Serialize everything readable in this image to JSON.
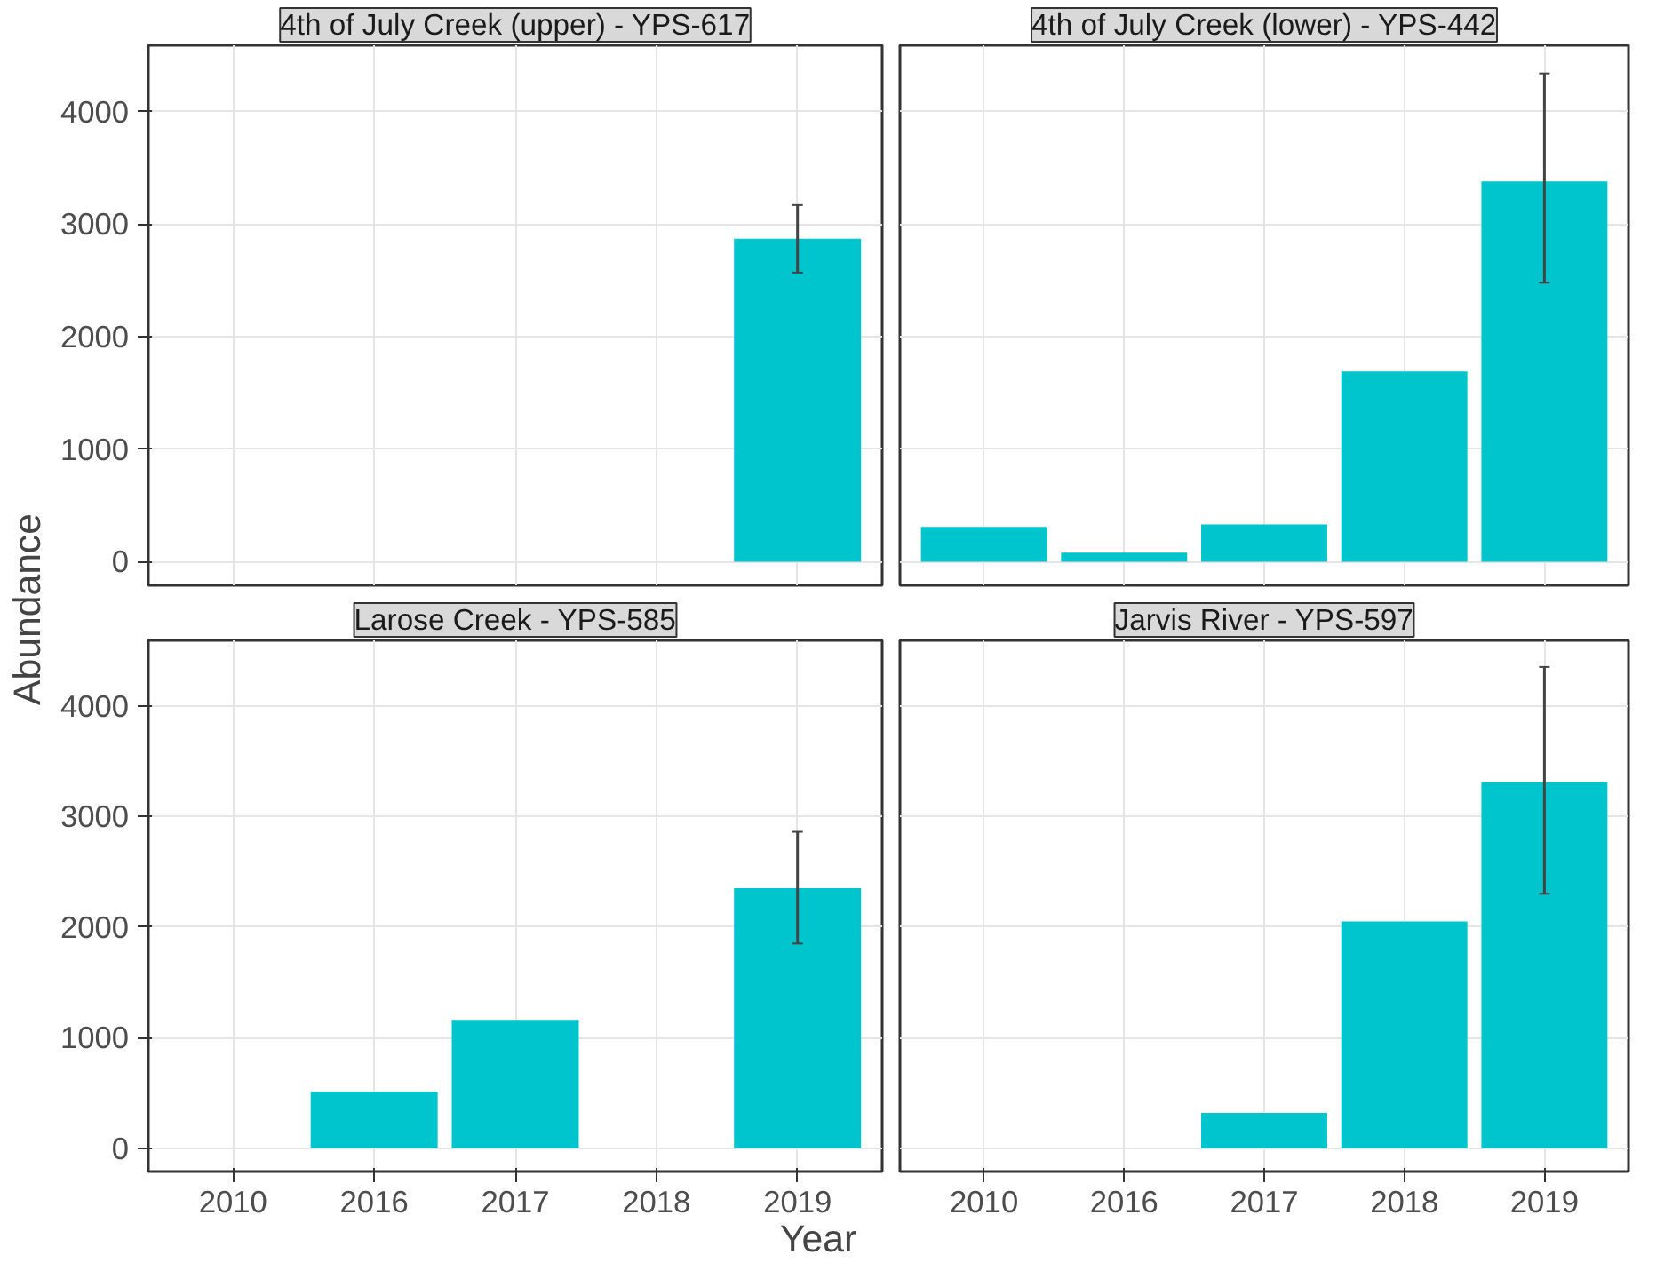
{
  "chart_data": [
    {
      "type": "bar",
      "title": "4th of July Creek (upper) - YPS-617",
      "ylabel": "Abundance",
      "categories": [
        "2010",
        "2016",
        "2017",
        "2018",
        "2019"
      ],
      "values": [
        null,
        null,
        null,
        null,
        2870
      ],
      "errors": [
        null,
        null,
        null,
        null,
        [
          2570,
          3170
        ]
      ],
      "color": "#00c5cd",
      "ylim": [
        -210,
        4590
      ],
      "yticks": [
        0,
        1000,
        2000,
        3000,
        4000
      ],
      "grid": true,
      "tick_labels": "y"
    },
    {
      "type": "bar",
      "title": "4th of July Creek (lower) - YPS-442",
      "categories": [
        "2010",
        "2016",
        "2017",
        "2018",
        "2019"
      ],
      "values": [
        310,
        80,
        330,
        1690,
        3380
      ],
      "errors": [
        null,
        null,
        null,
        null,
        [
          2480,
          4340
        ]
      ],
      "color": "#00c5cd",
      "ylim": [
        -210,
        4590
      ],
      "yticks": [
        0,
        1000,
        2000,
        3000,
        4000
      ],
      "grid": true,
      "tick_labels": false
    },
    {
      "type": "bar",
      "title": "Larose Creek - YPS-585",
      "xlabel": "Year",
      "categories": [
        "2010",
        "2016",
        "2017",
        "2018",
        "2019"
      ],
      "values": [
        null,
        510,
        1160,
        null,
        2350
      ],
      "errors": [
        null,
        null,
        null,
        null,
        [
          1850,
          2860
        ]
      ],
      "color": "#00c5cd",
      "ylim": [
        -210,
        4590
      ],
      "yticks": [
        0,
        1000,
        2000,
        3000,
        4000
      ],
      "grid": true
    },
    {
      "type": "bar",
      "title": "Jarvis River - YPS-597",
      "categories": [
        "2010",
        "2016",
        "2017",
        "2018",
        "2019"
      ],
      "values": [
        null,
        null,
        320,
        2050,
        3310
      ],
      "errors": [
        null,
        null,
        null,
        null,
        [
          2300,
          4350
        ]
      ],
      "color": "#00c5cd",
      "ylim": [
        -210,
        4590
      ],
      "yticks": [
        0,
        1000,
        2000,
        3000,
        4000
      ],
      "grid": true,
      "tick_labels": "x"
    }
  ]
}
